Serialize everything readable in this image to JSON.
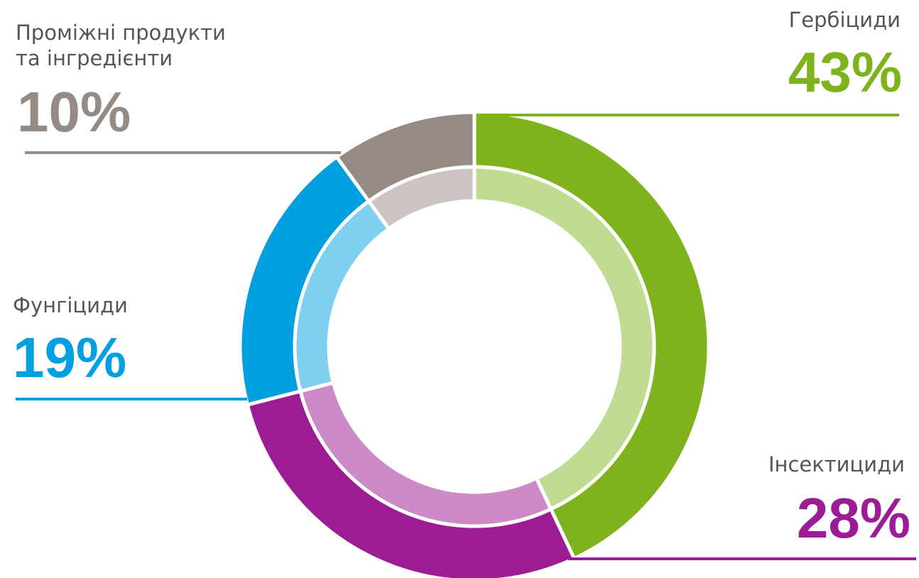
{
  "chart_data": {
    "type": "donut",
    "categories": [
      "Гербіциди",
      "Інсектициди",
      "Фунгіциди",
      "Проміжні продукти та інгредієнти"
    ],
    "values": [
      43,
      28,
      19,
      10
    ],
    "value_labels": [
      "43%",
      "28%",
      "19%",
      "10%"
    ],
    "colors": [
      "#7fb31e",
      "#9c1c96",
      "#009fdf",
      "#968a85"
    ],
    "inner_colors": [
      "#c0dc93",
      "#cc8ac8",
      "#7fcfef",
      "#cbc4c2"
    ]
  }
}
